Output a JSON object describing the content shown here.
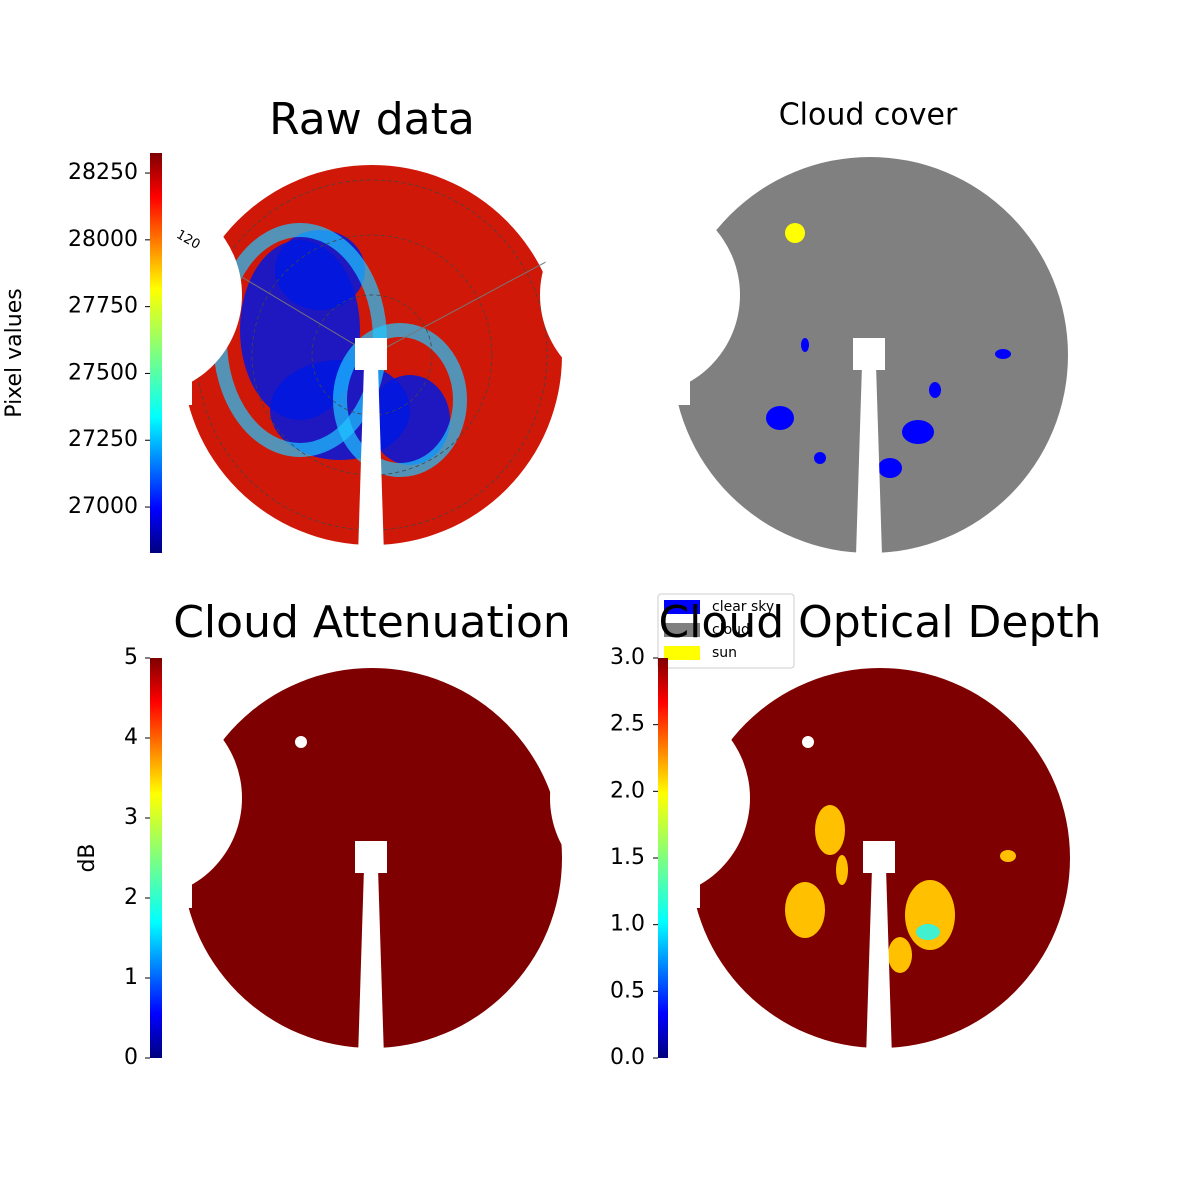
{
  "chart_data": [
    {
      "type": "image",
      "title": "Raw data",
      "ylabel": "Pixel values",
      "ylim": [
        26828,
        28325
      ],
      "yticks": [
        27000,
        27250,
        27500,
        27750,
        28000,
        28250
      ],
      "annotations": [
        "120"
      ]
    },
    {
      "type": "image",
      "title": "Cloud cover",
      "legend_items": [
        {
          "name": "clear sky",
          "color": "#0000ff"
        },
        {
          "name": "cloud",
          "color": "#808080"
        },
        {
          "name": "sun",
          "color": "#ffff00"
        }
      ]
    },
    {
      "type": "image",
      "title": "Cloud Attenuation",
      "ylabel": "dB",
      "ylim": [
        0,
        5
      ],
      "yticks": [
        0,
        1,
        2,
        3,
        4,
        5
      ]
    },
    {
      "type": "image",
      "title": "Cloud Optical Depth",
      "ylim": [
        0,
        3
      ],
      "yticks": [
        {
          "value": 0,
          "label": "0.0"
        },
        0.5,
        {
          "value": 1,
          "label": "1.0"
        },
        1.5,
        {
          "value": 2,
          "label": "2.0"
        },
        2.5,
        {
          "value": 3,
          "label": "3.0"
        }
      ]
    }
  ]
}
